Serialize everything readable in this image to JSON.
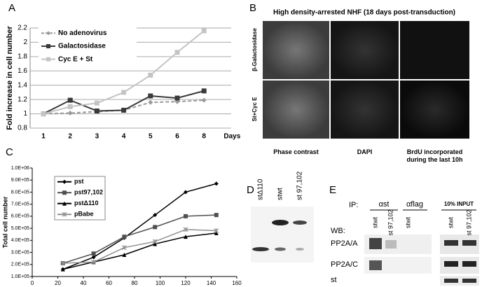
{
  "panel_labels": [
    "A",
    "B",
    "C",
    "D",
    "E"
  ],
  "chart_data": [
    {
      "type": "line",
      "y_label": "Fold increase in cell number",
      "x_label": "Days",
      "categories": [
        "1",
        "2",
        "3",
        "4",
        "5",
        "6",
        "8"
      ],
      "ylim": [
        0.8,
        2.2
      ],
      "yticks": [
        0.8,
        1,
        1.2,
        1.4,
        1.6,
        1.8,
        2,
        2.2
      ],
      "grid": true,
      "legend": "top-left",
      "series": [
        {
          "name": "No adenovirus",
          "color": "#9a9a9a",
          "marker": "diamond",
          "dashed": true,
          "values": [
            1,
            1.01,
            1.03,
            1.05,
            1.16,
            1.17,
            1.19
          ]
        },
        {
          "name": "Galactosidase",
          "color": "#3a3a3a",
          "marker": "square",
          "dashed": false,
          "values": [
            1,
            1.19,
            1.04,
            1.05,
            1.25,
            1.22,
            1.32
          ]
        },
        {
          "name": "Cyc E + St",
          "color": "#c4c4c4",
          "marker": "square",
          "dashed": false,
          "values": [
            1,
            1.1,
            1.15,
            1.3,
            1.54,
            1.86,
            2.16
          ]
        }
      ]
    },
    {
      "type": "line",
      "y_label": "Total cell number",
      "x": [
        24,
        48,
        72,
        96,
        120,
        144
      ],
      "xlim": [
        0,
        160
      ],
      "xticks": [
        0,
        20,
        40,
        60,
        80,
        100,
        120,
        140,
        160
      ],
      "ylim": [
        100000,
        1000000
      ],
      "yticks": [
        {
          "value": 100000,
          "label": "1.0E+05"
        },
        {
          "value": 200000,
          "label": "2.0E+05"
        },
        {
          "value": 300000,
          "label": "3.0E+05"
        },
        {
          "value": 400000,
          "label": "4.0E+05"
        },
        {
          "value": 500000,
          "label": "5.0E+05"
        },
        {
          "value": 600000,
          "label": "6.0E+05"
        },
        {
          "value": 700000,
          "label": "7.0E+05"
        },
        {
          "value": 800000,
          "label": "8.0E+05"
        },
        {
          "value": 900000,
          "label": "9.0E+05"
        },
        {
          "value": 1000000,
          "label": "1.0E+06"
        }
      ],
      "grid": false,
      "legend": "top-left",
      "series": [
        {
          "name": "pst",
          "color": "#000000",
          "marker": "diamond",
          "dashed": false,
          "values": [
            160000,
            260000,
            420000,
            610000,
            800000,
            870000
          ]
        },
        {
          "name": "pst97,102",
          "color": "#505050",
          "marker": "square",
          "dashed": false,
          "values": [
            210000,
            290000,
            430000,
            510000,
            600000,
            610000
          ]
        },
        {
          "name": "pstΔ110",
          "color": "#000000",
          "marker": "triangle",
          "dashed": false,
          "values": [
            160000,
            220000,
            280000,
            370000,
            430000,
            460000
          ]
        },
        {
          "name": "pBabe",
          "color": "#909090",
          "marker": "x",
          "dashed": false,
          "values": [
            210000,
            220000,
            340000,
            390000,
            490000,
            480000
          ]
        }
      ]
    }
  ],
  "panel_b": {
    "title": "High density-arrested NHF (18 days post-transduction)",
    "rows": [
      "β-Galactosidase",
      "St+Cyc E"
    ],
    "columns": [
      "Phase contrast",
      "DAPI",
      "BrdU incorporated during the last 10h"
    ]
  },
  "panel_d": {
    "lanes": [
      "stΔ110",
      "stwt",
      "st 97,102"
    ]
  },
  "panel_e": {
    "ip_label": "IP:",
    "ip_groups": [
      "αst",
      "αflag",
      "10% INPUT"
    ],
    "lanes": [
      "stwt",
      "st 97,102",
      "stwt",
      "stwt",
      "st 97,102"
    ],
    "wb_label": "WB:",
    "rows": [
      "PP2A/A",
      "PP2A/C",
      "st"
    ]
  }
}
